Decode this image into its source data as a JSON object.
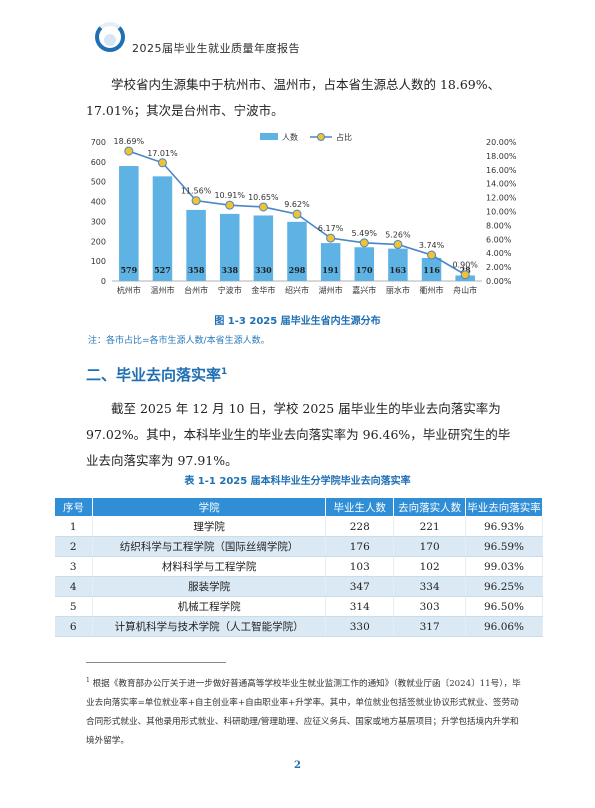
{
  "header": {
    "title": "2025届毕业生就业质量年度报告"
  },
  "intro": {
    "text": "学校省内生源集中于杭州市、温州市，占本省生源总人数的 18.69%、17.01%；其次是台州市、宁波市。"
  },
  "chart_data": {
    "type": "bar",
    "categories": [
      "杭州市",
      "温州市",
      "台州市",
      "宁波市",
      "金华市",
      "绍兴市",
      "湖州市",
      "嘉兴市",
      "丽水市",
      "衢州市",
      "舟山市"
    ],
    "series": [
      {
        "name": "人数",
        "type": "bar",
        "axis": "left",
        "values": [
          579,
          527,
          358,
          338,
          330,
          298,
          191,
          170,
          163,
          116,
          28
        ]
      },
      {
        "name": "占比",
        "type": "line",
        "axis": "right",
        "values": [
          18.69,
          17.01,
          11.56,
          10.91,
          10.65,
          9.62,
          6.17,
          5.49,
          5.26,
          3.74,
          0.9
        ]
      }
    ],
    "point_labels": [
      "18.69%",
      "17.01%",
      "11.56%",
      "10.91%",
      "10.65%",
      "9.62%",
      "6.17%",
      "5.49%",
      "5.26%",
      "3.74%",
      "0.90%"
    ],
    "y_left_ticks": [
      "0",
      "100",
      "200",
      "300",
      "400",
      "500",
      "600",
      "700"
    ],
    "y_right_ticks": [
      "0.00%",
      "2.00%",
      "4.00%",
      "6.00%",
      "8.00%",
      "10.00%",
      "12.00%",
      "14.00%",
      "16.00%",
      "18.00%",
      "20.00%"
    ],
    "ylim_left": [
      0,
      700
    ],
    "ylim_right": [
      0,
      20
    ],
    "legend_position": "top-right",
    "colors": {
      "bar": "#5eb3e4",
      "line": "#4a86c5",
      "marker": "#f2c230"
    },
    "caption": "图 1-3  2025 届毕业生省内生源分布"
  },
  "note": "注：各市占比=各市生源人数/本省生源人数。",
  "section": {
    "title": "二、毕业去向落实率",
    "footnote_ref": "1"
  },
  "rate_paragraph": "截至 2025 年 12 月 10 日，学校 2025 届毕业生的毕业去向落实率为 97.02%。其中，本科毕业生的毕业去向落实率为 96.46%，毕业研究生的毕业去向落实率为 97.91%。",
  "table": {
    "caption": "表 1-1  2025 届本科毕业生分学院毕业去向落实率",
    "headers": [
      "序号",
      "学院",
      "毕业生人数",
      "去向落实人数",
      "毕业去向落实率"
    ],
    "rows": [
      [
        "1",
        "理学院",
        "228",
        "221",
        "96.93%"
      ],
      [
        "2",
        "纺织科学与工程学院（国际丝绸学院）",
        "176",
        "170",
        "96.59%"
      ],
      [
        "3",
        "材料科学与工程学院",
        "103",
        "102",
        "99.03%"
      ],
      [
        "4",
        "服装学院",
        "347",
        "334",
        "96.25%"
      ],
      [
        "5",
        "机械工程学院",
        "314",
        "303",
        "96.50%"
      ],
      [
        "6",
        "计算机科学与技术学院（人工智能学院）",
        "330",
        "317",
        "96.06%"
      ]
    ]
  },
  "footnote": {
    "marker": "1",
    "text": "根据《教育部办公厅关于进一步做好普通高等学校毕业生就业监测工作的通知》（教就业厅函〔2024〕11号），毕业去向落实率=单位就业率+自主创业率+自由职业率+升学率。其中，单位就业包括签就业协议形式就业、签劳动合同形式就业、其他录用形式就业、科研助理/管理助理、应征义务兵、国家或地方基层项目；升学包括境内升学和境外留学。"
  },
  "page_number": "2"
}
